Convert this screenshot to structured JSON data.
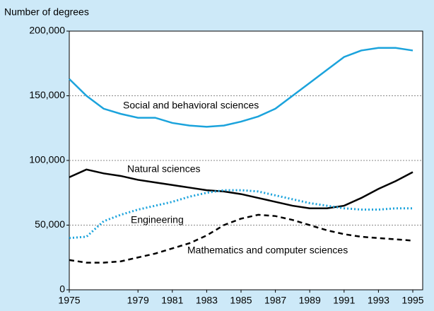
{
  "chart_data": {
    "type": "line",
    "title": "Number of degrees",
    "x": [
      1975,
      1976,
      1977,
      1978,
      1979,
      1980,
      1981,
      1982,
      1983,
      1984,
      1985,
      1986,
      1987,
      1988,
      1989,
      1990,
      1991,
      1992,
      1993,
      1994,
      1995
    ],
    "xlim": [
      1975,
      1995
    ],
    "xticks": [
      1975,
      1979,
      1981,
      1983,
      1985,
      1987,
      1989,
      1991,
      1993,
      1995
    ],
    "ylim": [
      0,
      200000
    ],
    "yticks": [
      0,
      {
        "value": 50000,
        "label": "50,000"
      },
      {
        "value": 100000,
        "label": "100,000"
      },
      {
        "value": 150000,
        "label": "150,000"
      },
      {
        "value": 200000,
        "label": "200,000"
      }
    ],
    "grid": true,
    "series": [
      {
        "name": "Social and behavioral sciences",
        "color": "#1ba3dc",
        "style": "solid",
        "values": [
          163000,
          150000,
          140000,
          136000,
          133000,
          133000,
          129000,
          127000,
          126000,
          127000,
          130000,
          134000,
          140000,
          150000,
          160000,
          170000,
          180000,
          185000,
          187000,
          187000,
          185000
        ]
      },
      {
        "name": "Natural sciences",
        "color": "#000000",
        "style": "solid",
        "values": [
          87000,
          93000,
          90000,
          88000,
          85000,
          83000,
          81000,
          79000,
          77000,
          76000,
          74000,
          71000,
          68000,
          65000,
          63000,
          63000,
          65000,
          71000,
          78000,
          84000,
          91000
        ]
      },
      {
        "name": "Engineering",
        "color": "#1ba3dc",
        "style": "dotted",
        "values": [
          40000,
          41000,
          53000,
          58000,
          62000,
          65000,
          68000,
          72000,
          75000,
          77000,
          77000,
          76000,
          73000,
          70000,
          67000,
          65000,
          63000,
          62000,
          62000,
          63000,
          63000
        ]
      },
      {
        "name": "Mathematics and computer sciences",
        "color": "#000000",
        "style": "dashed",
        "values": [
          23000,
          21000,
          21000,
          22000,
          25000,
          28000,
          32000,
          36000,
          42000,
          50000,
          55000,
          58000,
          57000,
          54000,
          50000,
          46000,
          43000,
          41000,
          40000,
          39000,
          38000
        ]
      }
    ]
  }
}
